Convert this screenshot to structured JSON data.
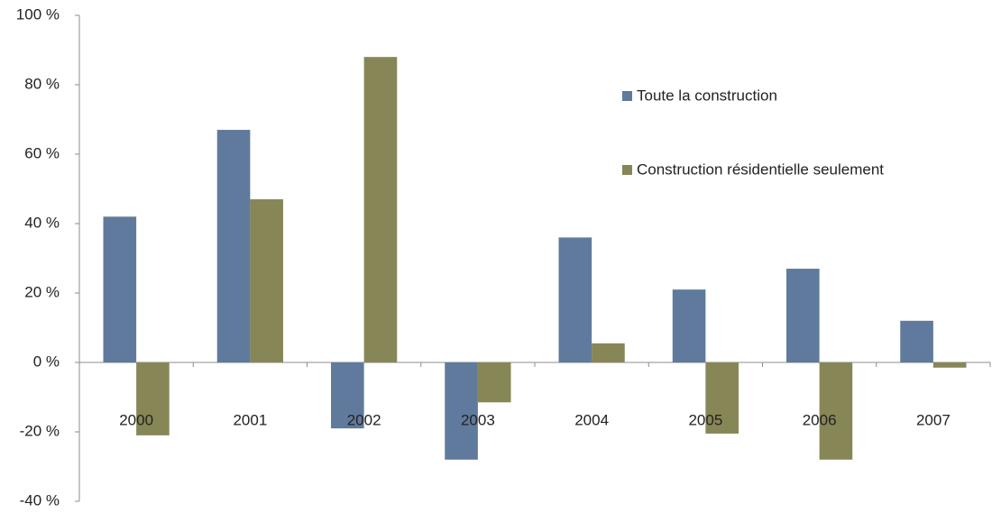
{
  "chart_data": {
    "type": "bar",
    "categories": [
      "2000",
      "2001",
      "2002",
      "2003",
      "2004",
      "2005",
      "2006",
      "2007"
    ],
    "series": [
      {
        "name": "Toute la construction",
        "color": "#5f7a9c",
        "values": [
          42,
          67,
          -19,
          -28,
          36,
          21,
          27,
          12
        ]
      },
      {
        "name": "Construction résidentielle seulement",
        "color": "#878657",
        "values": [
          -21,
          47,
          88,
          -11.5,
          5.5,
          -20.5,
          -28,
          -1.5
        ]
      }
    ],
    "ylim": [
      -40,
      100
    ],
    "yticks": [
      {
        "value": -40,
        "label": "-40 %"
      },
      {
        "value": -20,
        "label": "-20 %"
      },
      {
        "value": 0,
        "label": "0 %"
      },
      {
        "value": 20,
        "label": "20 %"
      },
      {
        "value": 40,
        "label": "40 %"
      },
      {
        "value": 60,
        "label": "60 %"
      },
      {
        "value": 80,
        "label": "80 %"
      },
      {
        "value": 100,
        "label": "100 %"
      }
    ],
    "legend": "right"
  }
}
